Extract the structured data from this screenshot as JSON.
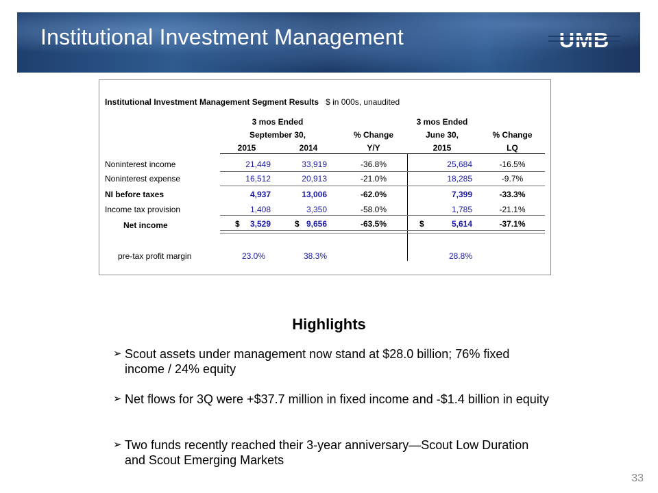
{
  "slide": {
    "title": "Institutional Investment Management",
    "logo_text": "UMB",
    "page_number": "33"
  },
  "table": {
    "title": "Institutional Investment Management Segment Results",
    "subtitle": "$ in 000s, unaudited",
    "headers": {
      "group1_line1": "3 mos Ended",
      "group1_line2": "September 30,",
      "col_2015": "2015",
      "col_2014": "2014",
      "pct_yy_line1": "% Change",
      "pct_yy_line2": "Y/Y",
      "group2_line1": "3 mos Ended",
      "group2_line2": "June 30,",
      "col_jun_2015": "2015",
      "pct_lq_line1": "% Change",
      "pct_lq_line2": "LQ"
    },
    "rows": [
      {
        "label": "Noninterest income",
        "sep2015": "21,449",
        "sep2014": "33,919",
        "yy": "-36.8%",
        "jun2015": "25,684",
        "lq": "-16.5%"
      },
      {
        "label": "Noninterest expense",
        "sep2015": "16,512",
        "sep2014": "20,913",
        "yy": "-21.0%",
        "jun2015": "18,285",
        "lq": "-9.7%"
      },
      {
        "label": "NI before taxes",
        "sep2015": "4,937",
        "sep2014": "13,006",
        "yy": "-62.0%",
        "jun2015": "7,399",
        "lq": "-33.3%"
      },
      {
        "label": "Income tax provision",
        "sep2015": "1,408",
        "sep2014": "3,350",
        "yy": "-58.0%",
        "jun2015": "1,785",
        "lq": "-21.1%"
      },
      {
        "label": "Net income",
        "dollar": "$",
        "sep2015": "3,529",
        "sep2014": "9,656",
        "yy": "-63.5%",
        "jun2015": "5,614",
        "lq": "-37.1%"
      }
    ],
    "margin_row": {
      "label": "pre-tax profit margin",
      "sep2015": "23.0%",
      "sep2014": "38.3%",
      "jun2015": "28.8%"
    }
  },
  "highlights": {
    "title": "Highlights",
    "bullet_marker": "➢",
    "items": [
      "Scout assets under management now stand at $28.0 billion; 76% fixed income / 24% equity",
      "Net flows for 3Q were +$37.7 million in fixed income and -$1.4 billion in equity",
      "Two funds recently reached their 3-year anniversary—Scout Low Duration and Scout Emerging Markets"
    ]
  },
  "colors": {
    "number_blue": "#1a1aa8",
    "header_blue": "#1e3f6e"
  }
}
